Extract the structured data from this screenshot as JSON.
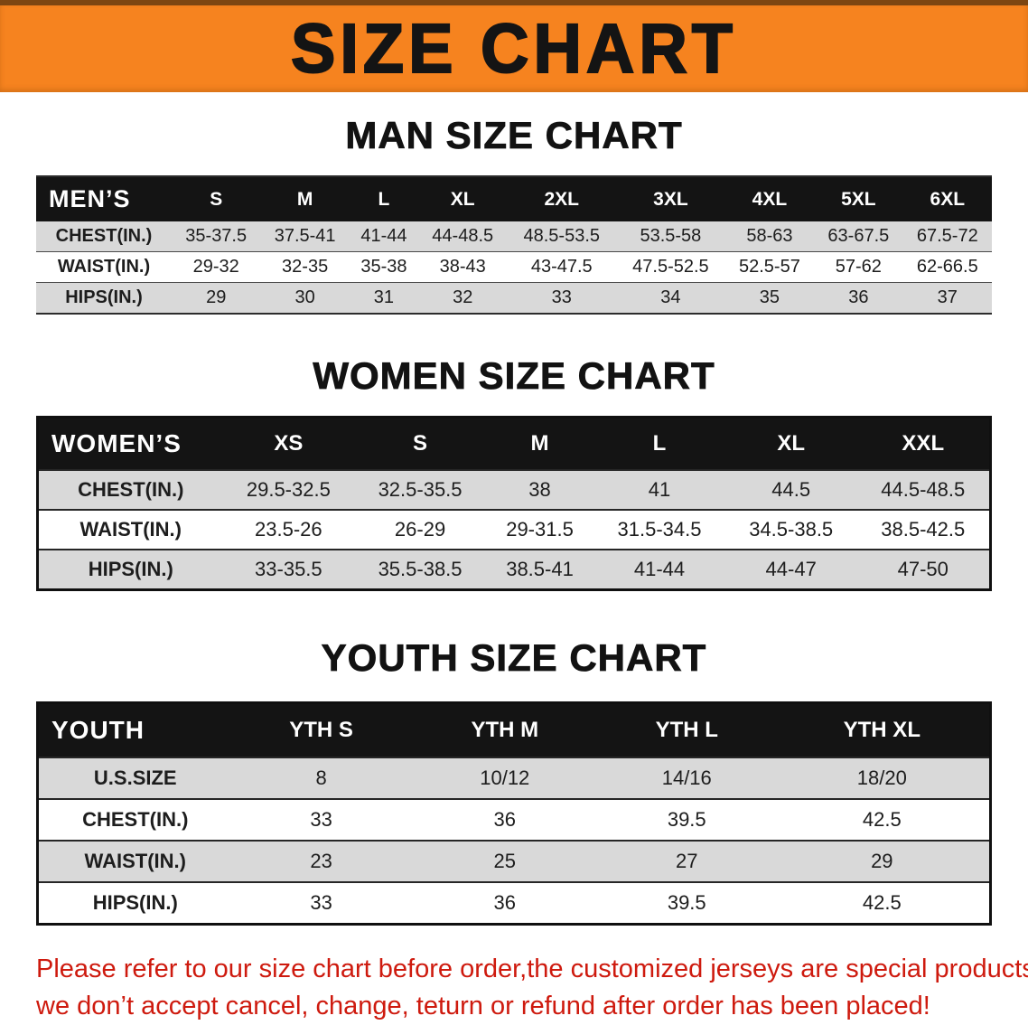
{
  "banner": {
    "title": "SIZE CHART"
  },
  "sections": {
    "men": {
      "heading": "MAN SIZE CHART"
    },
    "women": {
      "heading": "WOMEN SIZE CHART"
    },
    "youth": {
      "heading": "YOUTH SIZE CHART"
    }
  },
  "tables": {
    "men": {
      "header": [
        "MEN’S",
        "S",
        "M",
        "L",
        "XL",
        "2XL",
        "3XL",
        "4XL",
        "5XL",
        "6XL"
      ],
      "rows": [
        [
          "CHEST(IN.)",
          "35-37.5",
          "37.5-41",
          "41-44",
          "44-48.5",
          "48.5-53.5",
          "53.5-58",
          "58-63",
          "63-67.5",
          "67.5-72"
        ],
        [
          "WAIST(IN.)",
          "29-32",
          "32-35",
          "35-38",
          "38-43",
          "43-47.5",
          "47.5-52.5",
          "52.5-57",
          "57-62",
          "62-66.5"
        ],
        [
          "HIPS(IN.)",
          "29",
          "30",
          "31",
          "32",
          "33",
          "34",
          "35",
          "36",
          "37"
        ]
      ]
    },
    "women": {
      "header": [
        "WOMEN’S",
        "XS",
        "S",
        "M",
        "L",
        "XL",
        "XXL"
      ],
      "rows": [
        [
          "CHEST(IN.)",
          "29.5-32.5",
          "32.5-35.5",
          "38",
          "41",
          "44.5",
          "44.5-48.5"
        ],
        [
          "WAIST(IN.)",
          "23.5-26",
          "26-29",
          "29-31.5",
          "31.5-34.5",
          "34.5-38.5",
          "38.5-42.5"
        ],
        [
          "HIPS(IN.)",
          "33-35.5",
          "35.5-38.5",
          "38.5-41",
          "41-44",
          "44-47",
          "47-50"
        ]
      ]
    },
    "youth": {
      "header": [
        "YOUTH",
        "YTH S",
        "YTH M",
        "YTH L",
        "YTH XL"
      ],
      "rows": [
        [
          "U.S.SIZE",
          "8",
          "10/12",
          "14/16",
          "18/20"
        ],
        [
          "CHEST(IN.)",
          "33",
          "36",
          "39.5",
          "42.5"
        ],
        [
          "WAIST(IN.)",
          "23",
          "25",
          "27",
          "29"
        ],
        [
          "HIPS(IN.)",
          "33",
          "36",
          "39.5",
          "42.5"
        ]
      ]
    }
  },
  "disclaimer": {
    "line1": "Please refer to our size chart before order,the customized jerseys are special products,",
    "line2": "we don’t accept cancel, change, teturn or refund after order has been placed!"
  },
  "colors": {
    "banner_bg": "#f6831f",
    "table_header_bg": "#141414",
    "row_alt_bg": "#d9d9d9",
    "disclaimer_text": "#ce1a0e"
  }
}
